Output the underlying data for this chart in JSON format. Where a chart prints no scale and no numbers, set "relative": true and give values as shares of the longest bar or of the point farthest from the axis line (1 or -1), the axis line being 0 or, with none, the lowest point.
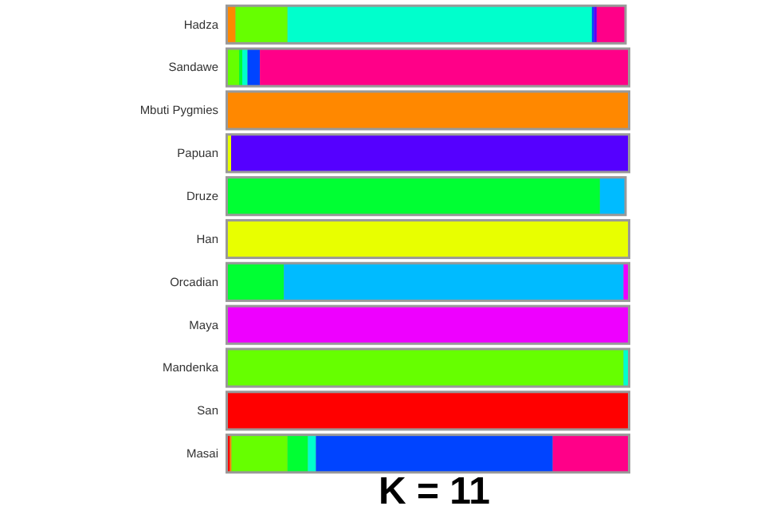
{
  "chart_data": {
    "type": "bar",
    "orientation": "horizontal",
    "stacked": true,
    "relative": true,
    "title": "K = 11",
    "categories": [
      "Hadza",
      "Sandawe",
      "Mbuti Pygmies",
      "Papuan",
      "Druze",
      "Han",
      "Orcadian",
      "Maya",
      "Mandenka",
      "San",
      "Masai"
    ],
    "series": [
      {
        "color": "#ff0000",
        "values": [
          null,
          null,
          null,
          null,
          null,
          null,
          null,
          null,
          null,
          1,
          0.005
        ]
      },
      {
        "color": "#ff8800",
        "values": [
          0.019,
          null,
          1,
          null,
          null,
          null,
          null,
          null,
          null,
          null,
          0.004
        ]
      },
      {
        "color": "#e8ff00",
        "values": [
          null,
          null,
          null,
          0.008,
          null,
          1,
          null,
          null,
          null,
          null,
          null
        ]
      },
      {
        "color": "#66ff00",
        "values": [
          0.13,
          0.028,
          null,
          null,
          null,
          null,
          null,
          null,
          0.989,
          null,
          0.14
        ]
      },
      {
        "color": "#00ff33",
        "values": [
          null,
          0.008,
          null,
          null,
          0.93,
          null,
          0.14,
          null,
          null,
          null,
          0.051
        ]
      },
      {
        "color": "#00bbff",
        "values": [
          null,
          null,
          null,
          null,
          0.061,
          null,
          0.849,
          null,
          null,
          null,
          null
        ]
      },
      {
        "color": "#00ffcc",
        "values": [
          0.761,
          0.013,
          null,
          null,
          null,
          null,
          null,
          null,
          0.011,
          null,
          0.02
        ]
      },
      {
        "color": "#0044ff",
        "values": [
          0.005,
          0.031,
          null,
          null,
          null,
          null,
          null,
          null,
          null,
          null,
          0.592
        ]
      },
      {
        "color": "#5500ff",
        "values": [
          0.007,
          null,
          null,
          0.992,
          null,
          null,
          null,
          null,
          null,
          null,
          null
        ]
      },
      {
        "color": "#ee00ff",
        "values": [
          null,
          null,
          null,
          null,
          null,
          null,
          0.011,
          1,
          null,
          null,
          null
        ]
      },
      {
        "color": "#ff0088",
        "values": [
          0.069,
          0.92,
          null,
          null,
          null,
          null,
          null,
          null,
          null,
          null,
          0.188
        ]
      }
    ]
  }
}
